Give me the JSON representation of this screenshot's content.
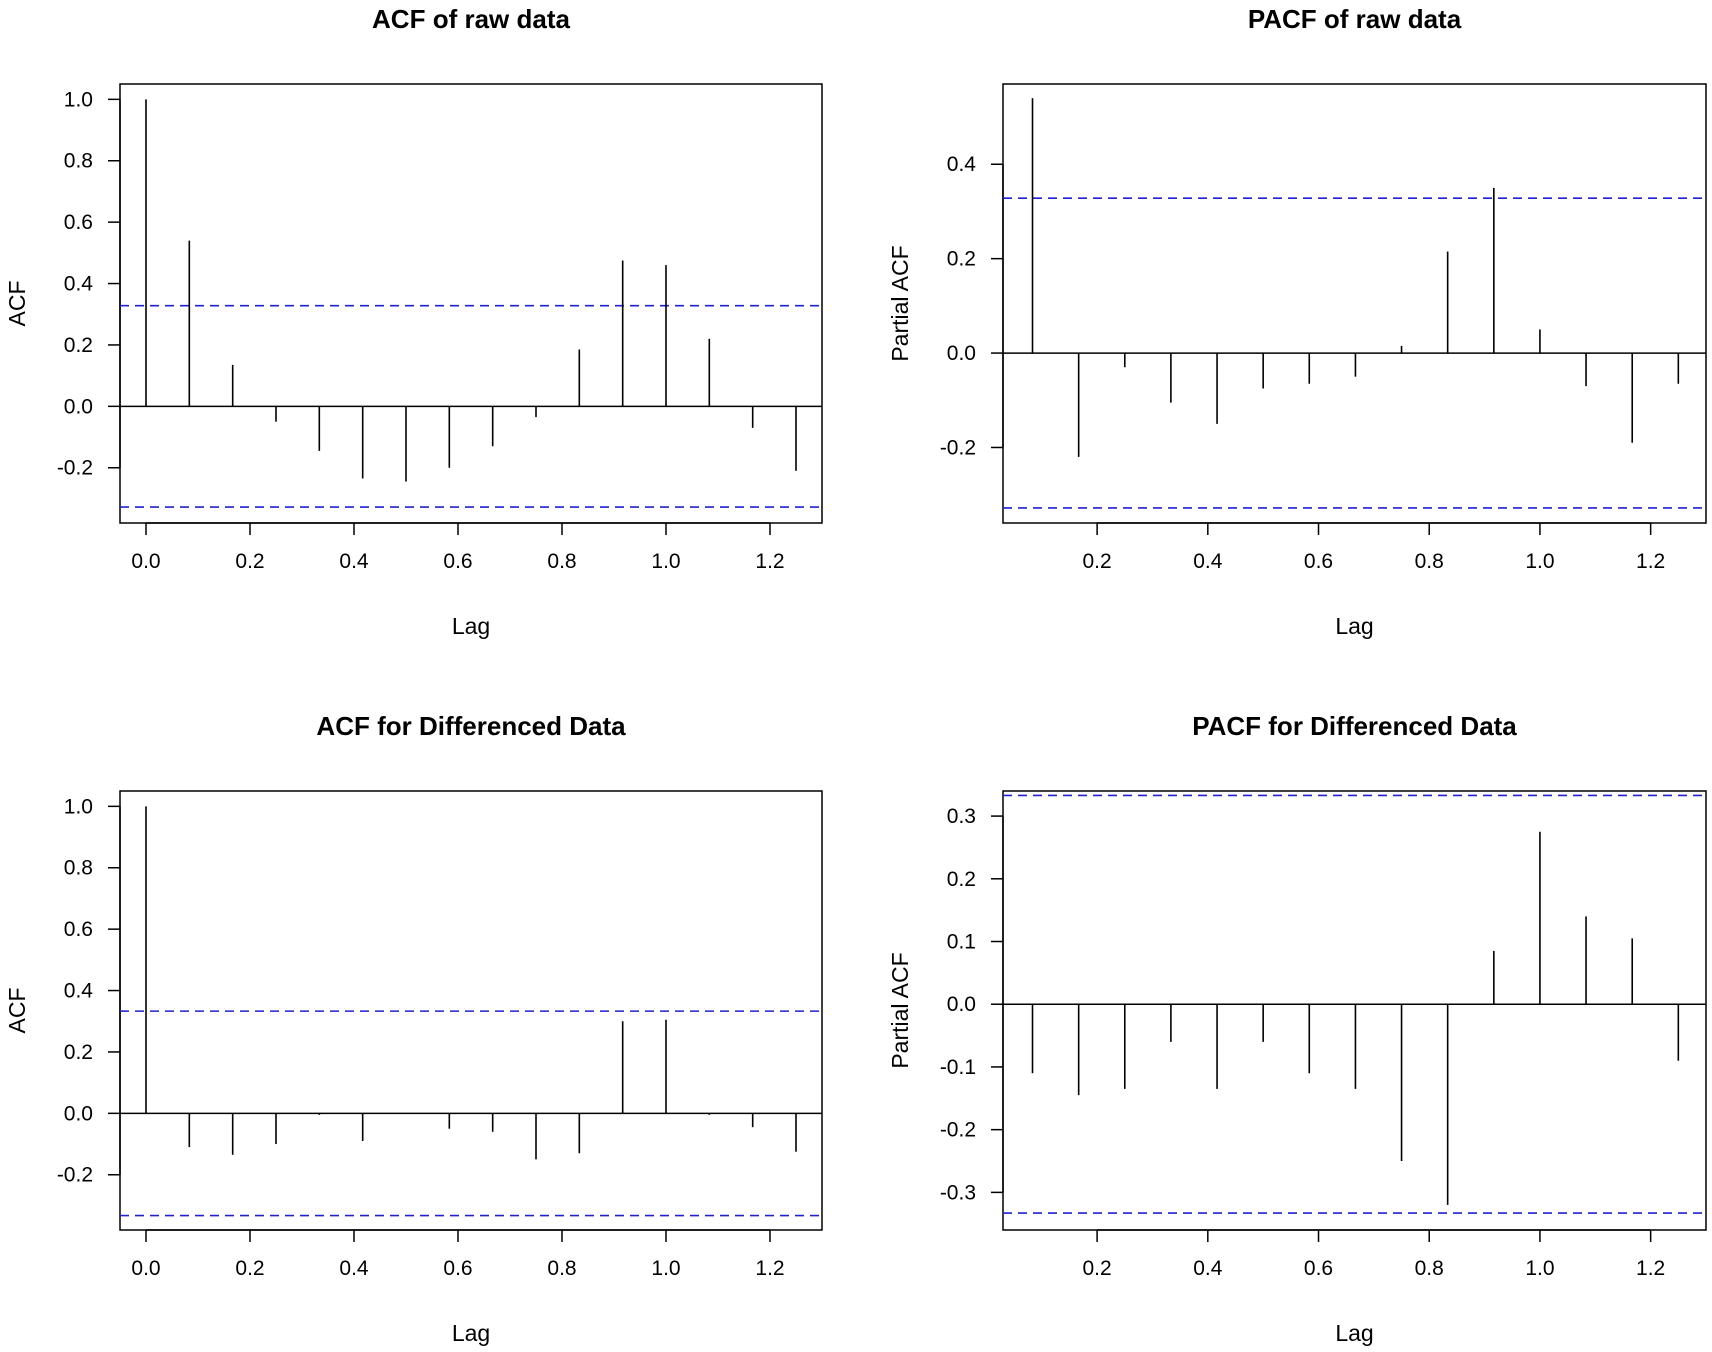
{
  "colors": {
    "ci": "#2222cc",
    "spike": "#000000"
  },
  "chart_data": [
    {
      "type": "bar",
      "subtype": "acf-correlogram",
      "title": "ACF of raw data",
      "xlabel": "Lag",
      "ylabel": "ACF",
      "xlim": [
        -0.05,
        1.3
      ],
      "ylim": [
        -0.38,
        1.05
      ],
      "xticks": [
        0.0,
        0.2,
        0.4,
        0.6,
        0.8,
        1.0,
        1.2
      ],
      "xtick_labels": [
        "0.0",
        "0.2",
        "0.4",
        "0.6",
        "0.8",
        "1.0",
        "1.2"
      ],
      "yticks": [
        -0.2,
        0.0,
        0.2,
        0.4,
        0.6,
        0.8,
        1.0
      ],
      "ytick_labels": [
        "-0.2",
        "0.0",
        "0.2",
        "0.4",
        "0.6",
        "0.8",
        "1.0"
      ],
      "ci": [
        0.328,
        -0.328
      ],
      "x": [
        0.0,
        0.0833,
        0.1667,
        0.25,
        0.3333,
        0.4167,
        0.5,
        0.5833,
        0.6667,
        0.75,
        0.8333,
        0.9167,
        1.0,
        1.0833,
        1.1667,
        1.25
      ],
      "values": [
        1.0,
        0.54,
        0.135,
        -0.05,
        -0.145,
        -0.235,
        -0.245,
        -0.2,
        -0.13,
        -0.035,
        0.185,
        0.475,
        0.46,
        0.22,
        -0.07,
        -0.21
      ]
    },
    {
      "type": "bar",
      "subtype": "pacf-correlogram",
      "title": "PACF of raw data",
      "xlabel": "Lag",
      "ylabel": "Partial ACF",
      "xlim": [
        0.03,
        1.3
      ],
      "ylim": [
        -0.36,
        0.57
      ],
      "xticks": [
        0.2,
        0.4,
        0.6,
        0.8,
        1.0,
        1.2
      ],
      "xtick_labels": [
        "0.2",
        "0.4",
        "0.6",
        "0.8",
        "1.0",
        "1.2"
      ],
      "yticks": [
        -0.2,
        0.0,
        0.2,
        0.4
      ],
      "ytick_labels": [
        "-0.2",
        "0.0",
        "0.2",
        "0.4"
      ],
      "ci": [
        0.328,
        -0.328
      ],
      "x": [
        0.0833,
        0.1667,
        0.25,
        0.3333,
        0.4167,
        0.5,
        0.5833,
        0.6667,
        0.75,
        0.8333,
        0.9167,
        1.0,
        1.0833,
        1.1667,
        1.25
      ],
      "values": [
        0.54,
        -0.22,
        -0.03,
        -0.105,
        -0.15,
        -0.075,
        -0.065,
        -0.05,
        0.015,
        0.215,
        0.35,
        0.05,
        -0.07,
        -0.19,
        -0.065
      ]
    },
    {
      "type": "bar",
      "subtype": "acf-correlogram",
      "title": "ACF for Differenced Data",
      "xlabel": "Lag",
      "ylabel": "ACF",
      "xlim": [
        -0.05,
        1.3
      ],
      "ylim": [
        -0.38,
        1.05
      ],
      "xticks": [
        0.0,
        0.2,
        0.4,
        0.6,
        0.8,
        1.0,
        1.2
      ],
      "xtick_labels": [
        "0.0",
        "0.2",
        "0.4",
        "0.6",
        "0.8",
        "1.0",
        "1.2"
      ],
      "yticks": [
        -0.2,
        0.0,
        0.2,
        0.4,
        0.6,
        0.8,
        1.0
      ],
      "ytick_labels": [
        "-0.2",
        "0.0",
        "0.2",
        "0.4",
        "0.6",
        "0.8",
        "1.0"
      ],
      "ci": [
        0.333,
        -0.333
      ],
      "x": [
        0.0,
        0.0833,
        0.1667,
        0.25,
        0.3333,
        0.4167,
        0.5,
        0.5833,
        0.6667,
        0.75,
        0.8333,
        0.9167,
        1.0,
        1.0833,
        1.1667,
        1.25
      ],
      "values": [
        1.0,
        -0.11,
        -0.135,
        -0.1,
        -0.005,
        -0.09,
        0.0,
        -0.05,
        -0.06,
        -0.15,
        -0.13,
        0.3,
        0.305,
        -0.005,
        -0.045,
        -0.125
      ]
    },
    {
      "type": "bar",
      "subtype": "pacf-correlogram",
      "title": "PACF for Differenced Data",
      "xlabel": "Lag",
      "ylabel": "Partial ACF",
      "xlim": [
        0.03,
        1.3
      ],
      "ylim": [
        -0.36,
        0.34
      ],
      "xticks": [
        0.2,
        0.4,
        0.6,
        0.8,
        1.0,
        1.2
      ],
      "xtick_labels": [
        "0.2",
        "0.4",
        "0.6",
        "0.8",
        "1.0",
        "1.2"
      ],
      "yticks": [
        -0.3,
        -0.2,
        -0.1,
        0.0,
        0.1,
        0.2,
        0.3
      ],
      "ytick_labels": [
        "-0.3",
        "-0.2",
        "-0.1",
        "0.0",
        "0.1",
        "0.2",
        "0.3"
      ],
      "ci": [
        0.333,
        -0.333
      ],
      "x": [
        0.0833,
        0.1667,
        0.25,
        0.3333,
        0.4167,
        0.5,
        0.5833,
        0.6667,
        0.75,
        0.8333,
        0.9167,
        1.0,
        1.0833,
        1.1667,
        1.25
      ],
      "values": [
        -0.11,
        -0.145,
        -0.135,
        -0.06,
        -0.135,
        -0.06,
        -0.11,
        -0.135,
        -0.25,
        -0.32,
        0.085,
        0.275,
        0.14,
        0.105,
        -0.09
      ]
    }
  ]
}
